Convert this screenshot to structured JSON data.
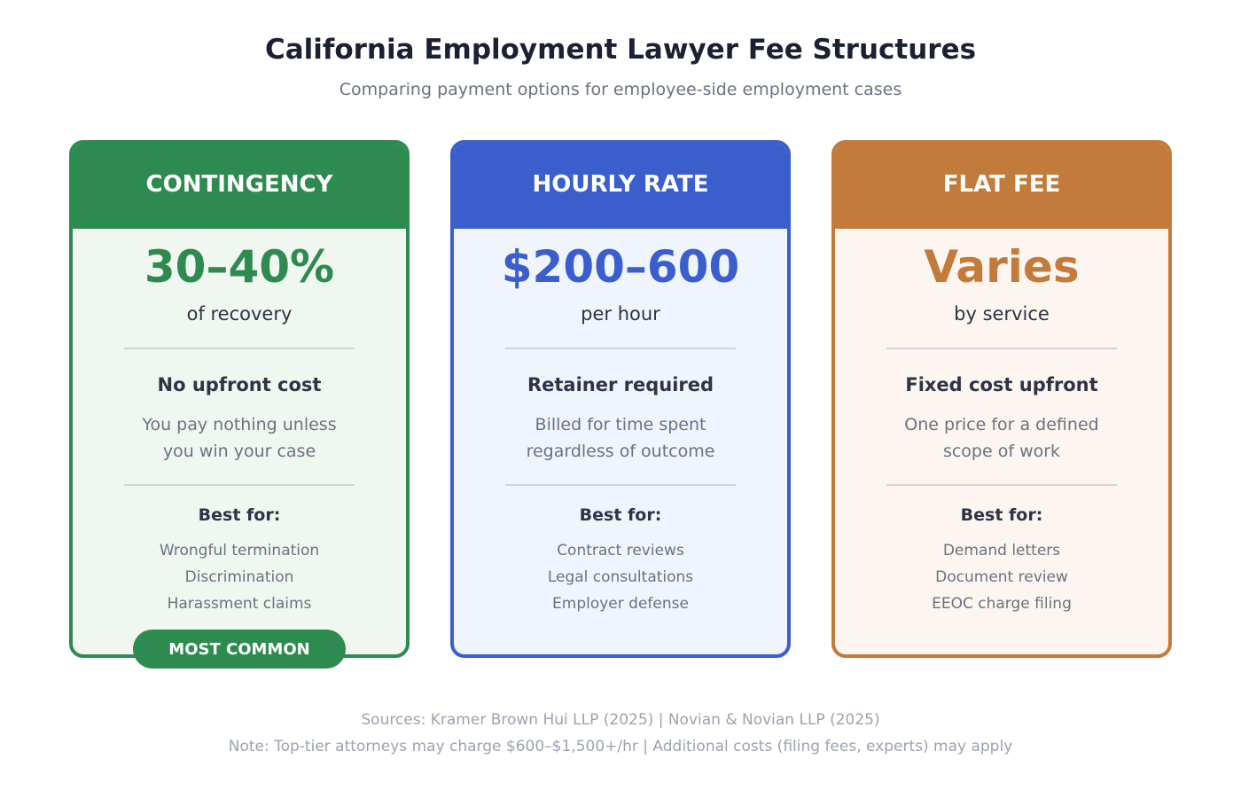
{
  "title": "California Employment Lawyer Fee Structures",
  "subtitle": "Comparing payment options for employee-side employment cases",
  "cards": [
    {
      "header": "CONTINGENCY",
      "value": "30–40%",
      "unit": "of recovery",
      "heading": "No upfront cost",
      "desc": [
        "You pay nothing unless",
        "you win your case"
      ],
      "best_label": "Best for:",
      "items": [
        "Wrongful termination",
        "Discrimination",
        "Harassment claims"
      ],
      "color": "#2e8b50",
      "bg": "#f0f6f0"
    },
    {
      "header": "HOURLY RATE",
      "value": "$200–600",
      "unit": "per hour",
      "heading": "Retainer required",
      "desc": [
        "Billed for time spent",
        "regardless of outcome"
      ],
      "best_label": "Best for:",
      "items": [
        "Contract reviews",
        "Legal consultations",
        "Employer defense"
      ],
      "color": "#3a5fcd",
      "bg": "#eff4fd"
    },
    {
      "header": "FLAT FEE",
      "value": "Varies",
      "unit": "by service",
      "heading": "Fixed cost upfront",
      "desc": [
        "One price for a defined",
        "scope of work"
      ],
      "best_label": "Best for:",
      "items": [
        "Demand letters",
        "Document review",
        "EEOC charge filing"
      ],
      "color": "#c27b3a",
      "bg": "#fcf5f0"
    }
  ],
  "badge": "MOST COMMON",
  "footer": {
    "sources": "Sources: Kramer Brown Hui LLP (2025) | Novian & Novian LLP (2025)",
    "note": "Note: Top-tier attorneys may charge $600–$1,500+/hr | Additional costs (filing fees, experts) may apply"
  }
}
